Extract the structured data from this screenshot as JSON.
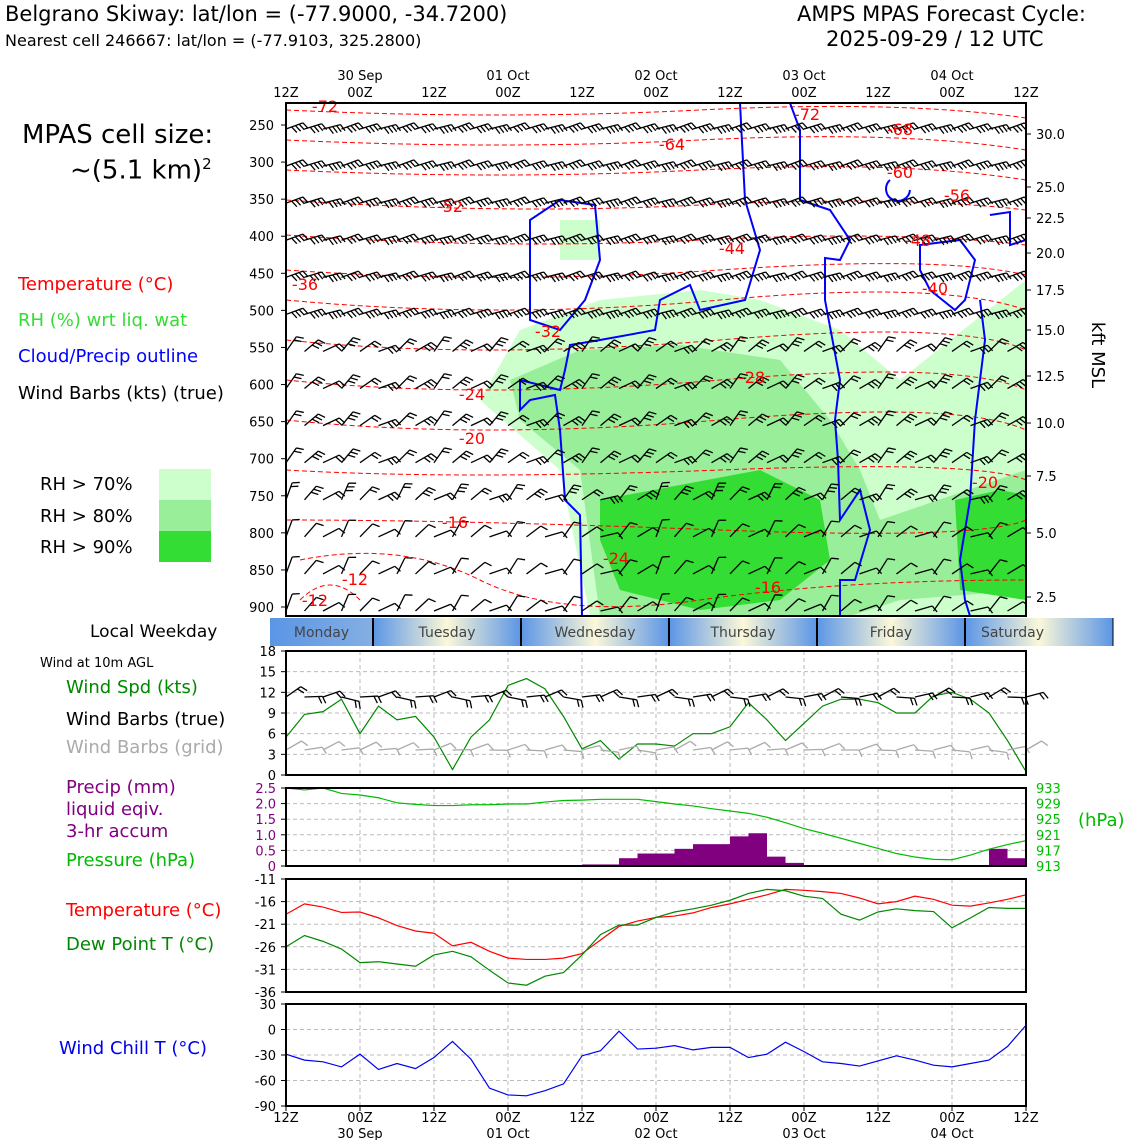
{
  "header": {
    "title": "Belgrano Skiway: lat/lon = (-77.9000, -34.7200)",
    "subtitle": "Nearest cell 246667: lat/lon = (-77.9103, 325.2800)",
    "cycle_title": "AMPS MPAS Forecast Cycle:",
    "cycle_time": "2025-09-29 / 12 UTC"
  },
  "left_panel": {
    "cell_size_line1": "MPAS cell size:",
    "cell_size_line2": "~(5.1 km)",
    "cell_size_exp": "2",
    "legend_temp": "Temperature (°C)",
    "legend_rh": "RH (%) wrt liq. wat",
    "legend_cloud": "Cloud/Precip outline",
    "legend_wind": "Wind Barbs (kts) (true)",
    "rh_keys": [
      {
        "label": "RH > 70%",
        "color": "#ccffcc"
      },
      {
        "label": "RH > 80%",
        "color": "#99ee99"
      },
      {
        "label": "RH > 90%",
        "color": "#33dd33"
      }
    ],
    "local_weekday": "Local Weekday",
    "wind_10m": "Wind at 10m AGL",
    "wind_spd": "Wind Spd (kts)",
    "wind_barbs_true": "Wind Barbs (true)",
    "wind_barbs_grid": "Wind Barbs (grid)",
    "precip_l1": "Precip (mm)",
    "precip_l2": "liquid eqiv.",
    "precip_l3": "3-hr accum",
    "pressure": "Pressure (hPa)",
    "temp2": "Temperature (°C)",
    "dewpt": "Dew Point T (°C)",
    "windchill": "Wind Chill T (°C)"
  },
  "colors": {
    "temp": "#ff0000",
    "rh": "#22cc22",
    "cloud": "#0000ff",
    "precip": "#800080",
    "pressure": "#00bb00",
    "dew": "#008800",
    "windchill": "#0000ee",
    "grid_barb": "#aaaaaa"
  },
  "time_axis": {
    "ticks": [
      "12Z",
      "00Z",
      "12Z",
      "00Z",
      "12Z",
      "00Z",
      "12Z",
      "00Z",
      "12Z",
      "00Z",
      "12Z"
    ],
    "dates": [
      "30 Sep",
      "01 Oct",
      "02 Oct",
      "03 Oct",
      "04 Oct"
    ],
    "weekdays": [
      "Monday",
      "Tuesday",
      "Wednesday",
      "Thursday",
      "Friday",
      "Saturday"
    ]
  },
  "chart_data": [
    {
      "type": "contour",
      "name": "cross-section",
      "ylabel_left": "hPa",
      "ylabel_right": "kft MSL",
      "pressure_ticks": [
        "250",
        "300",
        "350",
        "400",
        "450",
        "500",
        "550",
        "600",
        "650",
        "700",
        "750",
        "800",
        "850",
        "900"
      ],
      "kft_ticks": [
        "30.0",
        "25.0",
        "22.5",
        "20.0",
        "17.5",
        "15.0",
        "12.5",
        "10.0",
        "7.5",
        "5.0",
        "2.5"
      ],
      "temp_contour_labels": [
        "-72",
        "-64",
        "-72",
        "-68",
        "-60",
        "-56",
        "-52",
        "-44",
        "-48",
        "-36",
        "-40",
        "-32",
        "-28",
        "-24",
        "-20",
        "-20",
        "-16",
        "-12",
        "-12",
        "-24",
        "-16"
      ]
    },
    {
      "type": "line",
      "name": "wind-speed",
      "ylabel": "Wind Spd (kts)",
      "ylim": [
        0,
        18
      ],
      "yticks": [
        "0",
        "3",
        "6",
        "9",
        "12",
        "15",
        "18"
      ],
      "x_hours": [
        0,
        3,
        6,
        9,
        12,
        15,
        18,
        21,
        24,
        27,
        30,
        33,
        36,
        39,
        42,
        45,
        48,
        51,
        54,
        57,
        60,
        63,
        66,
        69,
        72,
        75,
        78,
        81,
        84,
        87,
        90,
        93,
        96,
        99,
        102,
        105,
        108,
        111,
        114,
        117,
        120
      ],
      "values": [
        5.5,
        8.8,
        9.2,
        11,
        6,
        10,
        8,
        8.5,
        5.5,
        0.8,
        5.5,
        8,
        13,
        14,
        12.5,
        8.5,
        3.8,
        5,
        2.3,
        4.5,
        4.5,
        4.2,
        6,
        6,
        7,
        10.5,
        8,
        5,
        7.5,
        10,
        11,
        11,
        10.5,
        9,
        9,
        11.5,
        12,
        11,
        9,
        5,
        0.5
      ]
    },
    {
      "type": "bar+line",
      "name": "precip-pressure",
      "precip_ylim": [
        0,
        2.5
      ],
      "precip_yticks": [
        "0",
        "0.5",
        "1.0",
        "1.5",
        "2.0",
        "2.5"
      ],
      "pressure_yticks": [
        "913",
        "917",
        "921",
        "925",
        "929",
        "933"
      ],
      "precip_x_hours": [
        48,
        51,
        54,
        57,
        60,
        63,
        66,
        69,
        72,
        75,
        78,
        81,
        114,
        117
      ],
      "precip_values": [
        0.05,
        0.05,
        0.25,
        0.4,
        0.4,
        0.55,
        0.7,
        0.7,
        0.95,
        1.05,
        0.3,
        0.1,
        0.55,
        0.25
      ],
      "pressure_values": [
        933,
        932.5,
        933,
        931.6,
        931.2,
        930.5,
        929.2,
        928.8,
        928.5,
        928.5,
        928.7,
        928.7,
        928.9,
        928.9,
        929.4,
        929.8,
        929.9,
        930.1,
        930.1,
        930.1,
        929.5,
        928.9,
        928.4,
        927.7,
        927.1,
        926.5,
        925.5,
        924.1,
        922.6,
        921.4,
        920.1,
        918.8,
        917.5,
        916.2,
        915.3,
        914.7,
        914.6,
        915.8,
        917.3,
        918.5,
        919.5
      ]
    },
    {
      "type": "line",
      "name": "temp-dewpoint",
      "ylim": [
        -36,
        -11
      ],
      "yticks": [
        "-11",
        "-16",
        "-21",
        "-26",
        "-31",
        "-36"
      ],
      "temp_values": [
        -18.8,
        -16.5,
        -17.2,
        -18.4,
        -18.3,
        -19.6,
        -21.3,
        -22.5,
        -23,
        -25.8,
        -25,
        -27,
        -28.5,
        -28.8,
        -28.8,
        -28.5,
        -27.5,
        -24.5,
        -21.5,
        -20.3,
        -19.5,
        -19.2,
        -18.5,
        -17.3,
        -16.5,
        -15.5,
        -14.5,
        -13.3,
        -13.5,
        -13.8,
        -14.2,
        -15.2,
        -16.5,
        -16,
        -14.8,
        -15.5,
        -16.8,
        -17,
        -16.3,
        -15.5,
        -14.5
      ],
      "dew_values": [
        -26,
        -23.5,
        -24.8,
        -26.5,
        -29.5,
        -29.3,
        -29.8,
        -30.3,
        -27.8,
        -27,
        -28.2,
        -31.2,
        -34,
        -34.5,
        -32.5,
        -31.7,
        -27.8,
        -23.3,
        -21.2,
        -21.2,
        -19.5,
        -18.3,
        -17.6,
        -16.8,
        -15.7,
        -14.2,
        -13.3,
        -13.6,
        -14.8,
        -15.3,
        -18.8,
        -20.1,
        -18.3,
        -17.6,
        -18,
        -18.2,
        -21.8,
        -19.6,
        -17.3,
        -17.5,
        -17.5
      ]
    },
    {
      "type": "line",
      "name": "wind-chill",
      "ylim": [
        -90,
        30
      ],
      "yticks": [
        "30",
        "0",
        "-30",
        "-60",
        "-90"
      ],
      "values": [
        -29,
        -36,
        -38,
        -44,
        -29,
        -47,
        -40,
        -46,
        -33,
        -14,
        -35,
        -69,
        -77,
        -78,
        -72,
        -64,
        -31,
        -25,
        -2,
        -23,
        -22,
        -19,
        -24,
        -21,
        -21,
        -33,
        -29,
        -15,
        -26,
        -38,
        -40,
        -43,
        -37,
        -31,
        -36,
        -42,
        -44,
        -40,
        -36,
        -20,
        5
      ]
    }
  ]
}
